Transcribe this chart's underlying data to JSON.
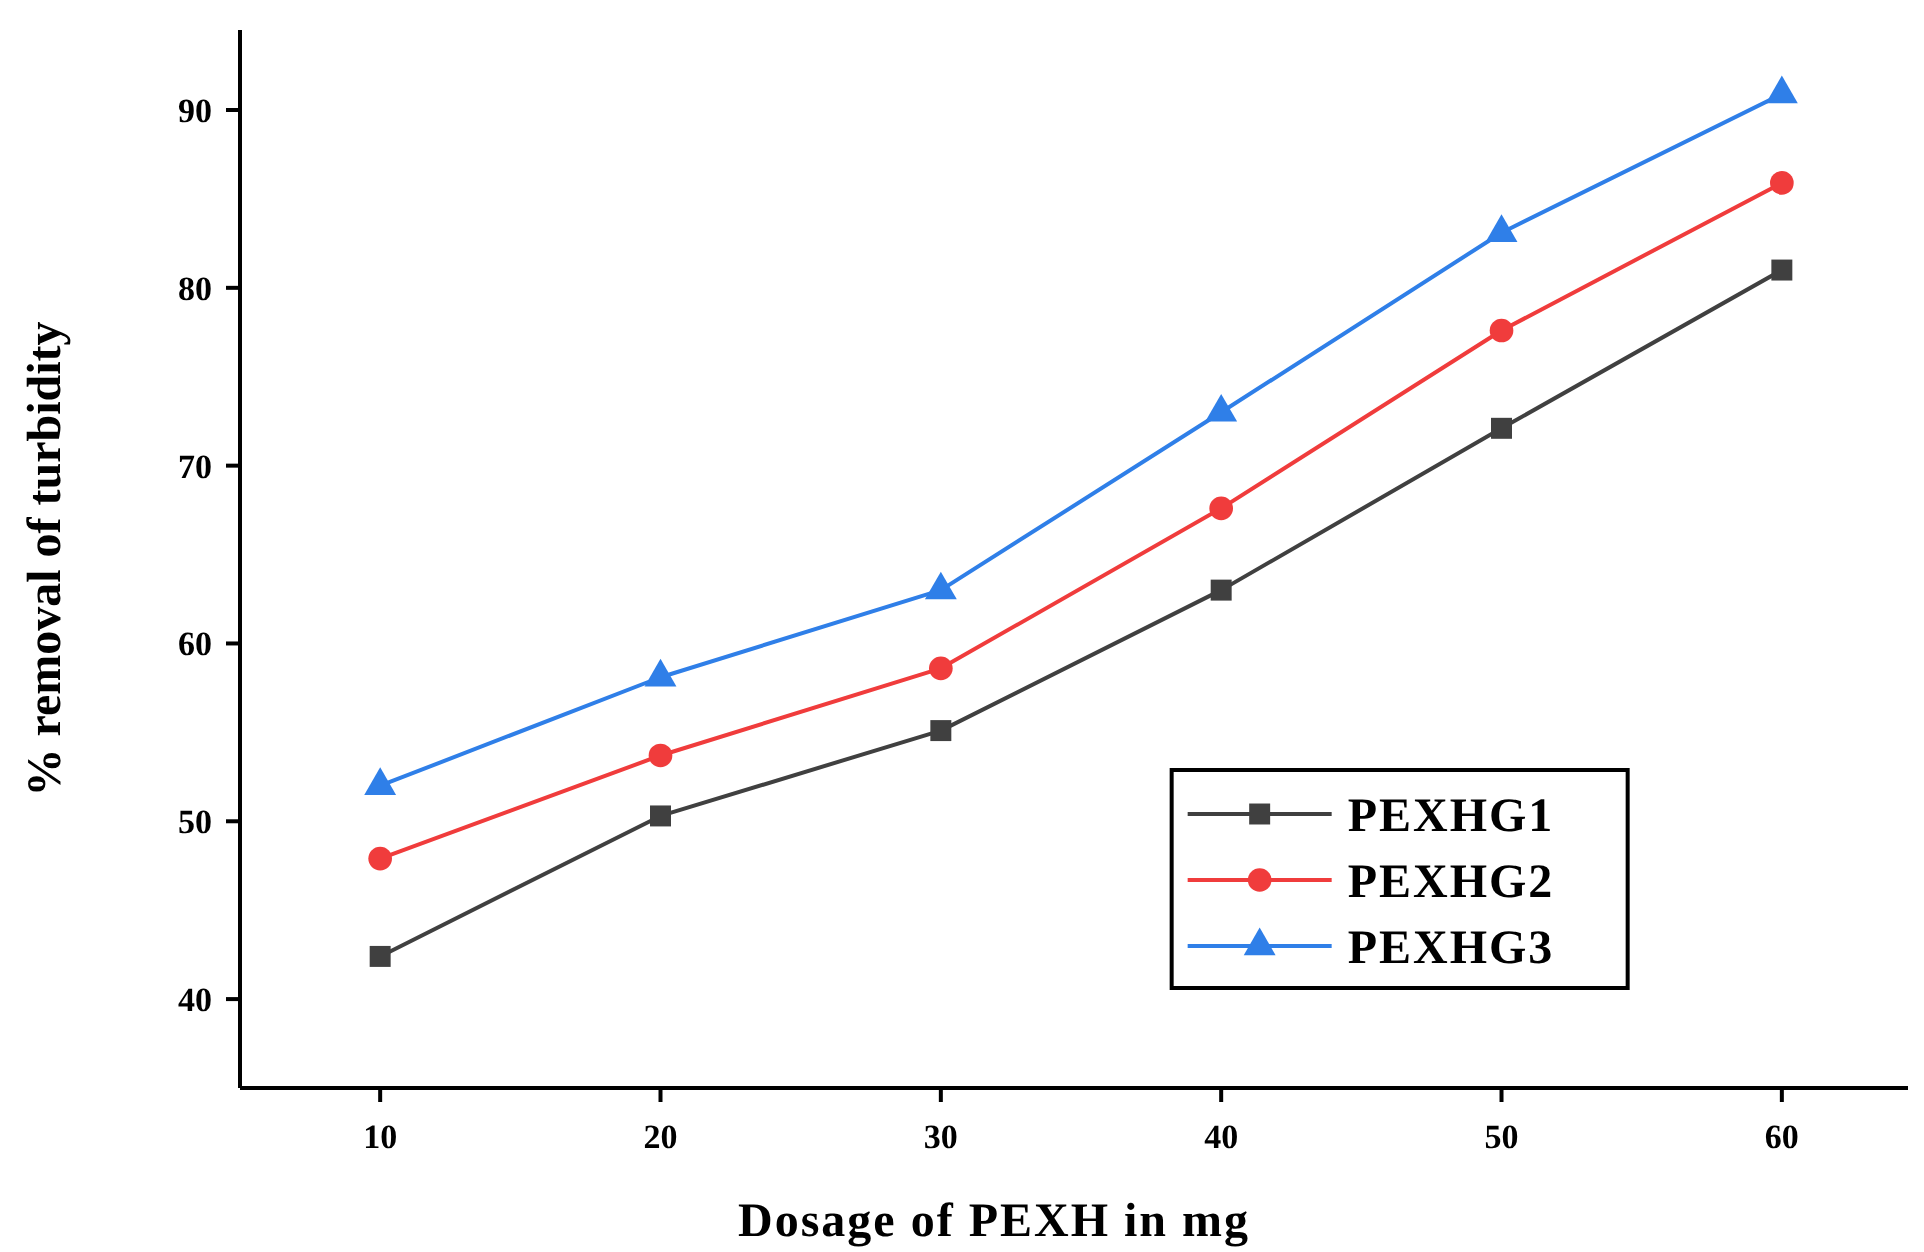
{
  "chart_data": {
    "type": "line",
    "xlabel": "Dosage of PEXH  in mg",
    "ylabel": "% removal of turbidity",
    "x": [
      10,
      20,
      30,
      40,
      50,
      60
    ],
    "series": [
      {
        "name": "PEXHG1",
        "color": "#404040",
        "marker": "square",
        "values": [
          42.4,
          50.3,
          55.1,
          63.0,
          72.1,
          81.0
        ]
      },
      {
        "name": "PEXHG2",
        "color": "#f03c3c",
        "marker": "circle",
        "values": [
          47.9,
          53.7,
          58.6,
          67.6,
          77.6,
          85.9
        ]
      },
      {
        "name": "PEXHG3",
        "color": "#2f7fe8",
        "marker": "triangle",
        "values": [
          52.0,
          58.1,
          63.0,
          73.0,
          83.1,
          90.9
        ]
      }
    ],
    "xlim": [
      5,
      64.5
    ],
    "ylim": [
      35,
      94.5
    ],
    "xticks": [
      10,
      20,
      30,
      40,
      50,
      60
    ],
    "yticks": [
      40,
      50,
      60,
      70,
      80,
      90
    ],
    "grid": false,
    "legend": "bottom right",
    "line_style": "solid"
  }
}
